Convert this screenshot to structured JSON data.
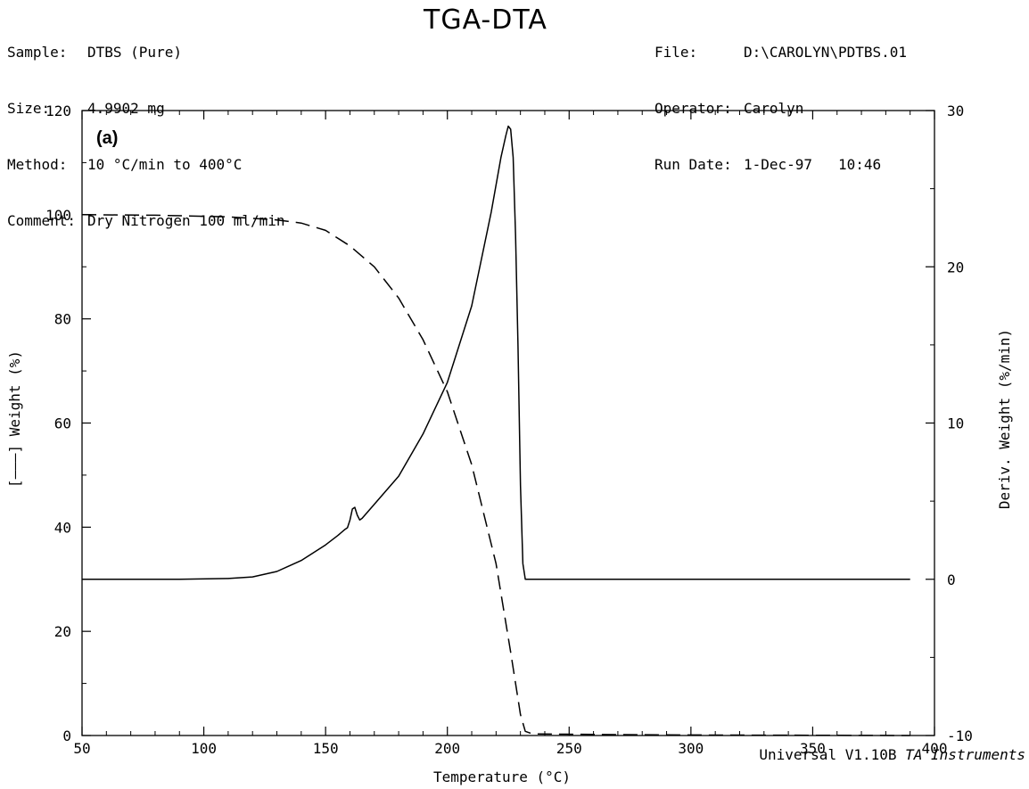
{
  "header": {
    "left": [
      {
        "key": "Sample:",
        "value": "DTBS (Pure)"
      },
      {
        "key": "Size:",
        "value": "4.9902 mg"
      },
      {
        "key": "Method:",
        "value": "10 °C/min to 400°C"
      },
      {
        "key": "Comment:",
        "value": "Dry Nitrogen 100 ml/min"
      }
    ],
    "right": [
      {
        "key": "File:",
        "value": "D:\\CAROLYN\\PDTBS.01"
      },
      {
        "key": "Operator:",
        "value": "Carolyn"
      },
      {
        "key": "Run Date:",
        "value": "1-Dec-97   10:46"
      }
    ]
  },
  "footer": {
    "software": "Universal V1.10B",
    "vendor": "TA Instruments"
  },
  "chart_data": {
    "type": "line",
    "title": "TGA-DTA",
    "panel_label": "(a)",
    "xlabel": "Temperature (°C)",
    "ylabel_left": "[———] Weight (%)",
    "ylabel_right": "Deriv. Weight (%/min)",
    "xlim": [
      50,
      400
    ],
    "ylim_left": [
      0,
      120
    ],
    "ylim_right": [
      -10,
      30
    ],
    "x_ticks": [
      50,
      100,
      150,
      200,
      250,
      300,
      350,
      400
    ],
    "y_left_ticks": [
      0,
      20,
      40,
      60,
      80,
      100,
      120
    ],
    "y_right_ticks": [
      -10,
      0,
      10,
      20,
      30
    ],
    "grid": false,
    "series": [
      {
        "axis": "left",
        "style": "dashed",
        "points": [
          [
            50,
            100
          ],
          [
            80,
            99.9
          ],
          [
            110,
            99.6
          ],
          [
            130,
            99
          ],
          [
            140,
            98.4
          ],
          [
            150,
            97
          ],
          [
            160,
            94
          ],
          [
            170,
            90
          ],
          [
            180,
            84
          ],
          [
            190,
            76
          ],
          [
            200,
            66
          ],
          [
            210,
            52
          ],
          [
            220,
            33
          ],
          [
            226,
            16
          ],
          [
            230,
            4
          ],
          [
            232,
            0.8
          ],
          [
            235,
            0.3
          ],
          [
            260,
            0.2
          ],
          [
            300,
            0.1
          ],
          [
            390,
            0
          ]
        ]
      },
      {
        "axis": "right",
        "style": "solid",
        "points": [
          [
            50,
            0
          ],
          [
            90,
            0
          ],
          [
            110,
            0.05
          ],
          [
            120,
            0.15
          ],
          [
            130,
            0.5
          ],
          [
            140,
            1.2
          ],
          [
            150,
            2.2
          ],
          [
            155,
            2.8
          ],
          [
            158,
            3.2
          ],
          [
            159,
            3.3
          ],
          [
            160,
            3.8
          ],
          [
            161,
            4.5
          ],
          [
            162,
            4.6
          ],
          [
            163,
            4.1
          ],
          [
            164,
            3.8
          ],
          [
            165,
            3.9
          ],
          [
            170,
            4.8
          ],
          [
            180,
            6.6
          ],
          [
            190,
            9.3
          ],
          [
            200,
            12.6
          ],
          [
            210,
            17.5
          ],
          [
            218,
            23.5
          ],
          [
            222,
            27
          ],
          [
            224,
            28.4
          ],
          [
            225,
            29
          ],
          [
            226,
            28.8
          ],
          [
            227,
            27
          ],
          [
            228,
            22
          ],
          [
            229,
            15
          ],
          [
            230,
            6
          ],
          [
            231,
            1
          ],
          [
            232,
            0
          ],
          [
            260,
            0
          ],
          [
            300,
            0
          ],
          [
            390,
            0
          ]
        ]
      }
    ]
  }
}
